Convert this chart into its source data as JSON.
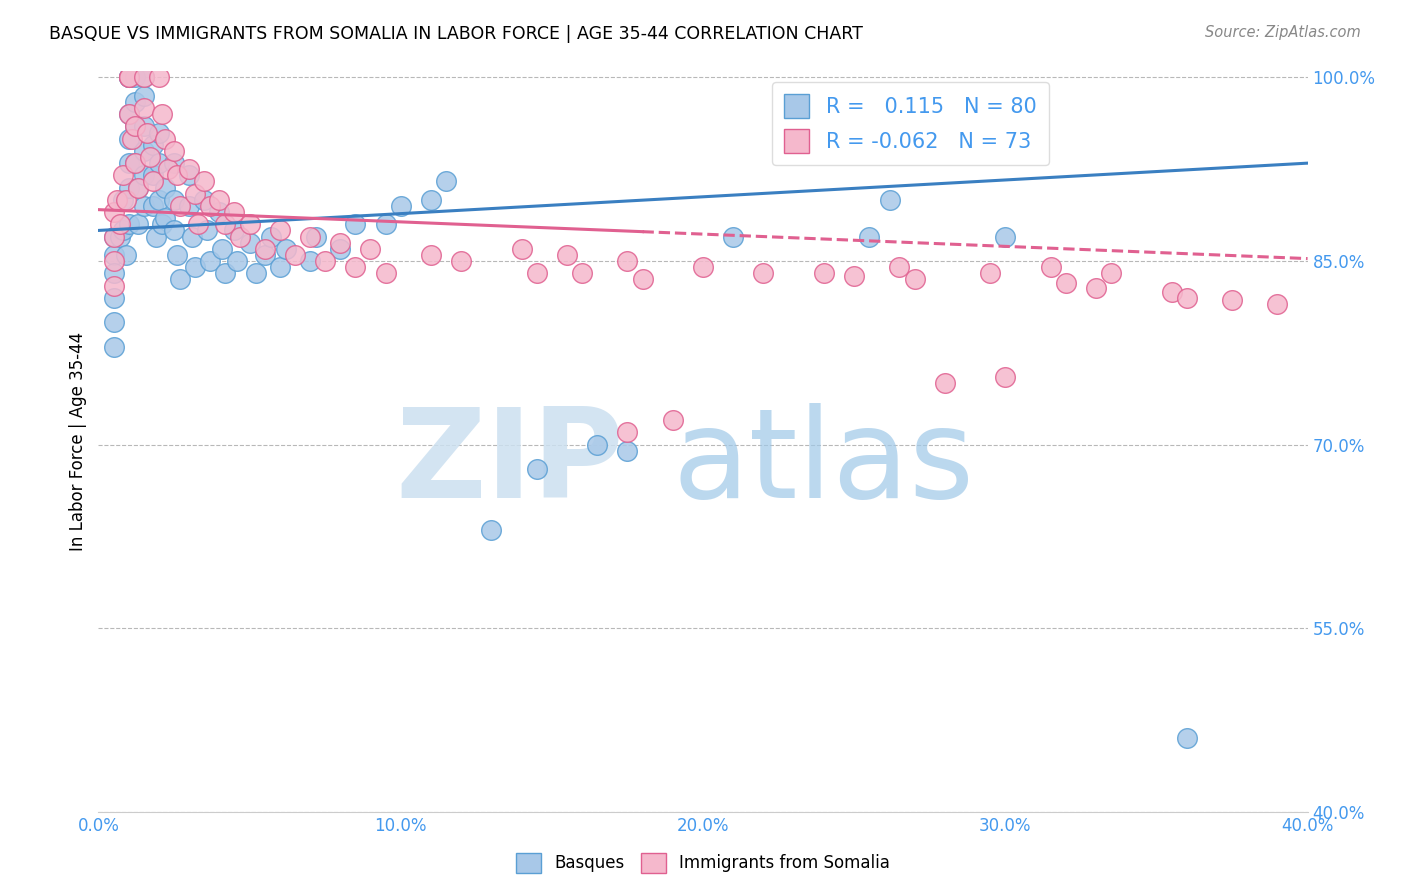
{
  "title": "BASQUE VS IMMIGRANTS FROM SOMALIA IN LABOR FORCE | AGE 35-44 CORRELATION CHART",
  "source": "Source: ZipAtlas.com",
  "ylabel": "In Labor Force | Age 35-44",
  "xlim": [
    0.0,
    0.4
  ],
  "ylim": [
    0.4,
    1.005
  ],
  "yticks": [
    0.4,
    0.55,
    0.7,
    0.85,
    1.0
  ],
  "xticks": [
    0.0,
    0.1,
    0.2,
    0.3,
    0.4
  ],
  "R_basque": 0.115,
  "N_basque": 80,
  "R_somalia": -0.062,
  "N_somalia": 73,
  "basque_color": "#a8c8e8",
  "somalia_color": "#f5b8cc",
  "basque_edge_color": "#5a9fd4",
  "somalia_edge_color": "#e06090",
  "basque_line_color": "#3a7fc1",
  "somalia_line_color": "#e06090",
  "watermark_zip_color": "#cce0f0",
  "watermark_atlas_color": "#b0cce0",
  "basque_x": [
    0.005,
    0.005,
    0.005,
    0.005,
    0.005,
    0.005,
    0.007,
    0.008,
    0.008,
    0.009,
    0.01,
    0.01,
    0.01,
    0.01,
    0.01,
    0.01,
    0.01,
    0.01,
    0.012,
    0.012,
    0.012,
    0.012,
    0.013,
    0.013,
    0.015,
    0.015,
    0.015,
    0.015,
    0.015,
    0.015,
    0.018,
    0.018,
    0.018,
    0.019,
    0.02,
    0.02,
    0.02,
    0.021,
    0.022,
    0.022,
    0.025,
    0.025,
    0.025,
    0.026,
    0.027,
    0.03,
    0.03,
    0.031,
    0.032,
    0.035,
    0.036,
    0.037,
    0.04,
    0.041,
    0.042,
    0.045,
    0.046,
    0.05,
    0.052,
    0.055,
    0.057,
    0.06,
    0.062,
    0.07,
    0.072,
    0.08,
    0.085,
    0.095,
    0.1,
    0.11,
    0.115,
    0.13,
    0.145,
    0.165,
    0.175,
    0.21,
    0.255,
    0.262,
    0.3,
    0.36
  ],
  "basque_y": [
    0.87,
    0.855,
    0.84,
    0.82,
    0.8,
    0.78,
    0.87,
    0.9,
    0.875,
    0.855,
    1.0,
    1.0,
    1.0,
    0.97,
    0.95,
    0.93,
    0.91,
    0.88,
    1.0,
    0.98,
    0.96,
    0.93,
    0.91,
    0.88,
    1.0,
    0.985,
    0.96,
    0.94,
    0.92,
    0.895,
    0.945,
    0.92,
    0.895,
    0.87,
    0.955,
    0.93,
    0.9,
    0.88,
    0.91,
    0.885,
    0.93,
    0.9,
    0.875,
    0.855,
    0.835,
    0.92,
    0.895,
    0.87,
    0.845,
    0.9,
    0.875,
    0.85,
    0.89,
    0.86,
    0.84,
    0.875,
    0.85,
    0.865,
    0.84,
    0.855,
    0.87,
    0.845,
    0.86,
    0.85,
    0.87,
    0.86,
    0.88,
    0.88,
    0.895,
    0.9,
    0.915,
    0.63,
    0.68,
    0.7,
    0.695,
    0.87,
    0.87,
    0.9,
    0.87,
    0.46
  ],
  "somalia_x": [
    0.005,
    0.005,
    0.005,
    0.005,
    0.006,
    0.007,
    0.008,
    0.009,
    0.01,
    0.01,
    0.01,
    0.011,
    0.012,
    0.012,
    0.013,
    0.015,
    0.015,
    0.016,
    0.017,
    0.018,
    0.02,
    0.021,
    0.022,
    0.023,
    0.025,
    0.026,
    0.027,
    0.03,
    0.032,
    0.033,
    0.035,
    0.037,
    0.04,
    0.042,
    0.045,
    0.047,
    0.05,
    0.055,
    0.06,
    0.065,
    0.07,
    0.075,
    0.08,
    0.085,
    0.09,
    0.095,
    0.11,
    0.12,
    0.14,
    0.145,
    0.155,
    0.16,
    0.175,
    0.18,
    0.2,
    0.22,
    0.25,
    0.27,
    0.32,
    0.33,
    0.355,
    0.36,
    0.375,
    0.39,
    0.28,
    0.3,
    0.175,
    0.19,
    0.24,
    0.265,
    0.295,
    0.315,
    0.335
  ],
  "somalia_y": [
    0.89,
    0.87,
    0.85,
    0.83,
    0.9,
    0.88,
    0.92,
    0.9,
    1.0,
    1.0,
    0.97,
    0.95,
    0.96,
    0.93,
    0.91,
    1.0,
    0.975,
    0.955,
    0.935,
    0.915,
    1.0,
    0.97,
    0.95,
    0.925,
    0.94,
    0.92,
    0.895,
    0.925,
    0.905,
    0.88,
    0.915,
    0.895,
    0.9,
    0.88,
    0.89,
    0.87,
    0.88,
    0.86,
    0.875,
    0.855,
    0.87,
    0.85,
    0.865,
    0.845,
    0.86,
    0.84,
    0.855,
    0.85,
    0.86,
    0.84,
    0.855,
    0.84,
    0.85,
    0.835,
    0.845,
    0.84,
    0.838,
    0.835,
    0.832,
    0.828,
    0.825,
    0.82,
    0.818,
    0.815,
    0.75,
    0.755,
    0.71,
    0.72,
    0.84,
    0.845,
    0.84,
    0.845,
    0.84
  ]
}
